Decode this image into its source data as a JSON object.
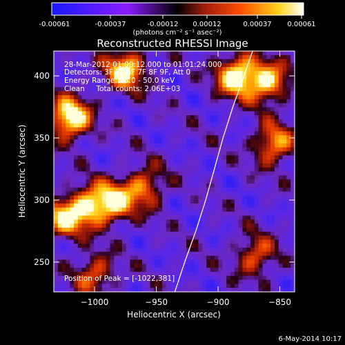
{
  "colorbar": {
    "ticks": [
      "-0.00061",
      "-0.00037",
      "-0.00012",
      "0.00012",
      "0.00037",
      "0.00061"
    ],
    "units": "(photons cm⁻² s⁻¹ asec⁻²)"
  },
  "chart_data": {
    "type": "heatmap",
    "title": "Reconstructed RHESSI Image",
    "xlabel": "Heliocentric X (arcsec)",
    "ylabel": "Heliocentric Y (arcsec)",
    "xlim": [
      -1033,
      -838
    ],
    "ylim": [
      226,
      420
    ],
    "x_ticks": [
      -1000,
      -950,
      -900,
      -850
    ],
    "y_ticks": [
      250,
      300,
      350,
      400
    ],
    "x_tick_labels": [
      "−1000",
      "−950",
      "−900",
      "−850"
    ],
    "y_tick_labels": [
      "250",
      "300",
      "350",
      "400"
    ],
    "limb_points": [
      [
        -935,
        226
      ],
      [
        -927,
        250
      ],
      [
        -918,
        275
      ],
      [
        -910,
        300
      ],
      [
        -903,
        325
      ],
      [
        -896,
        350
      ],
      [
        -888,
        375
      ],
      [
        -879,
        400
      ],
      [
        -872,
        420
      ]
    ],
    "bright_sources": [
      {
        "x": -1020,
        "y": 366,
        "level": 1.0
      },
      {
        "x": -975,
        "y": 405,
        "level": 0.85
      },
      {
        "x": -885,
        "y": 400,
        "level": 0.95
      },
      {
        "x": -860,
        "y": 395,
        "level": 0.8
      },
      {
        "x": -1005,
        "y": 295,
        "level": 0.7
      },
      {
        "x": -985,
        "y": 298,
        "level": 0.75
      },
      {
        "x": -1025,
        "y": 285,
        "level": 0.7
      },
      {
        "x": -855,
        "y": 345,
        "level": 0.7
      },
      {
        "x": -960,
        "y": 310,
        "level": 0.6
      },
      {
        "x": -1000,
        "y": 240,
        "level": 0.55
      },
      {
        "x": -870,
        "y": 255,
        "level": 0.55
      }
    ],
    "vmin": -0.00061,
    "vmax": 0.00061
  },
  "info": {
    "time": "28-Mar-2012 01:00:12.000 to 01:01:24.000",
    "detectors": "Detectors: 3F 5F 6F 7F 8F 9F, Att 0",
    "energy": "Energy Range: 25.0 - 50.0 keV",
    "clean": "Clean     Total counts: 2.06E+03",
    "peak": "Position of Peak = [-1022,381]"
  },
  "footer_date": "6-May-2014 10:17"
}
